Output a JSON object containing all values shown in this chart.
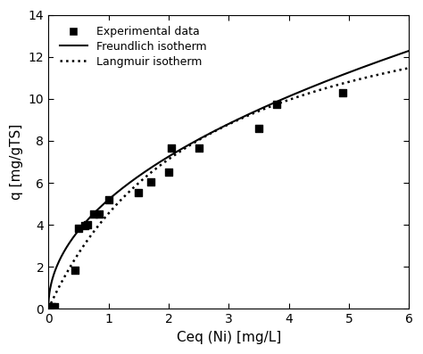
{
  "exp_x": [
    0.05,
    0.1,
    0.45,
    0.5,
    0.6,
    0.65,
    0.75,
    0.85,
    1.0,
    1.5,
    1.7,
    2.0,
    2.05,
    2.5,
    3.5,
    3.8,
    4.9
  ],
  "exp_y": [
    0.12,
    0.12,
    1.85,
    3.85,
    3.95,
    4.0,
    4.5,
    4.5,
    5.2,
    5.55,
    6.05,
    6.5,
    7.65,
    7.65,
    8.6,
    9.75,
    10.3
  ],
  "freundlich_Kf": 5.2,
  "freundlich_n": 0.48,
  "langmuir_qmax": 16.5,
  "langmuir_b": 0.38,
  "xlim": [
    0,
    6
  ],
  "ylim": [
    0,
    14
  ],
  "xticks": [
    0,
    1,
    2,
    3,
    4,
    5,
    6
  ],
  "yticks": [
    0,
    2,
    4,
    6,
    8,
    10,
    12,
    14
  ],
  "xlabel": "Ceq (Ni) [mg/L]",
  "ylabel": "q [mg/gTS]",
  "legend_exp": "Experimental data",
  "legend_freundlich": "Freundlich isotherm",
  "legend_langmuir": "Langmuir isotherm",
  "line_color": "#000000",
  "marker_color": "#000000",
  "bg_color": "#ffffff",
  "figure_width": 4.74,
  "figure_height": 3.97,
  "dpi": 100
}
